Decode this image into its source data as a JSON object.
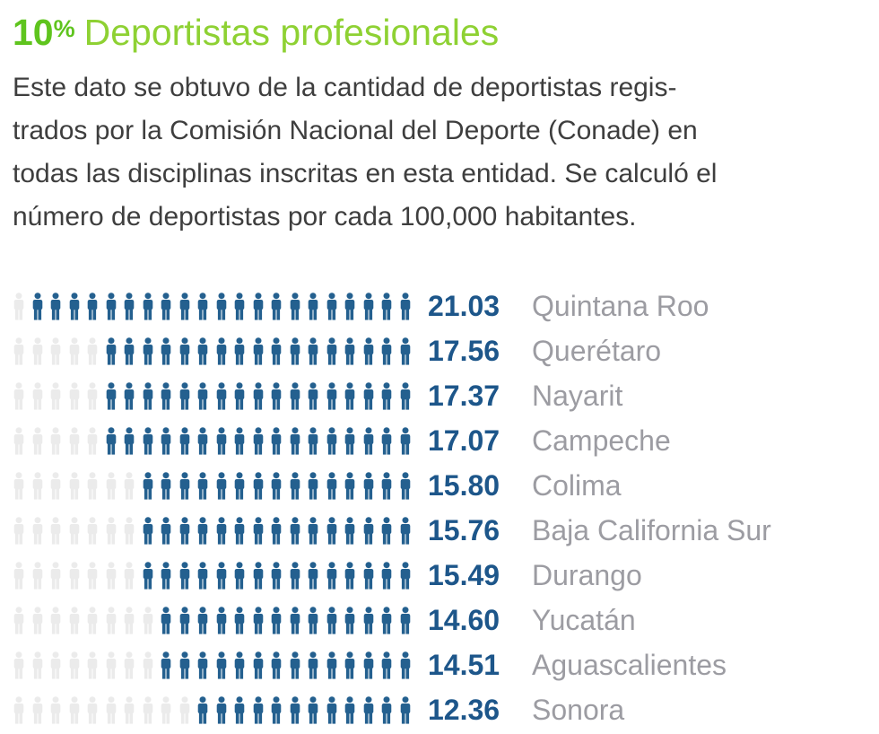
{
  "header": {
    "percent_value": "10",
    "percent_sign": "%",
    "title": "Deportistas profesionales",
    "percent_color": "#5fc41e",
    "title_color": "#8ed133"
  },
  "description": {
    "lines": [
      "Este dato se obtuvo de la cantidad de deportistas regis-",
      "trados por la Comisión Nacional del Deporte (Conade) en",
      "todas las disciplinas inscritas en esta entidad. Se calculó el",
      "número de deportistas por cada 100,000 habitantes."
    ]
  },
  "chart_data": {
    "type": "pictogram-bar",
    "title": "Deportistas profesionales",
    "unit": "deportistas por cada 100,000 habitantes",
    "icon": "person-icon",
    "total_icons_per_row": 22,
    "fill_direction": "right-aligned",
    "colors": {
      "filled": "#24608f",
      "empty": "#ebebeb",
      "value": "#1d568a",
      "label": "#9c9ca2"
    },
    "rows": [
      {
        "state": "Quintana Roo",
        "value": "21.03",
        "filled_icons": 21,
        "empty_icons": 1
      },
      {
        "state": "Querétaro",
        "value": "17.56",
        "filled_icons": 17,
        "empty_icons": 5
      },
      {
        "state": "Nayarit",
        "value": "17.37",
        "filled_icons": 17,
        "empty_icons": 5
      },
      {
        "state": "Campeche",
        "value": "17.07",
        "filled_icons": 17,
        "empty_icons": 5
      },
      {
        "state": "Colima",
        "value": "15.80",
        "filled_icons": 15,
        "empty_icons": 7
      },
      {
        "state": "Baja California Sur",
        "value": "15.76",
        "filled_icons": 15,
        "empty_icons": 7
      },
      {
        "state": "Durango",
        "value": "15.49",
        "filled_icons": 15,
        "empty_icons": 7
      },
      {
        "state": "Yucatán",
        "value": "14.60",
        "filled_icons": 14,
        "empty_icons": 8
      },
      {
        "state": "Aguascalientes",
        "value": "14.51",
        "filled_icons": 14,
        "empty_icons": 8
      },
      {
        "state": "Sonora",
        "value": "12.36",
        "filled_icons": 12,
        "empty_icons": 10
      }
    ]
  }
}
